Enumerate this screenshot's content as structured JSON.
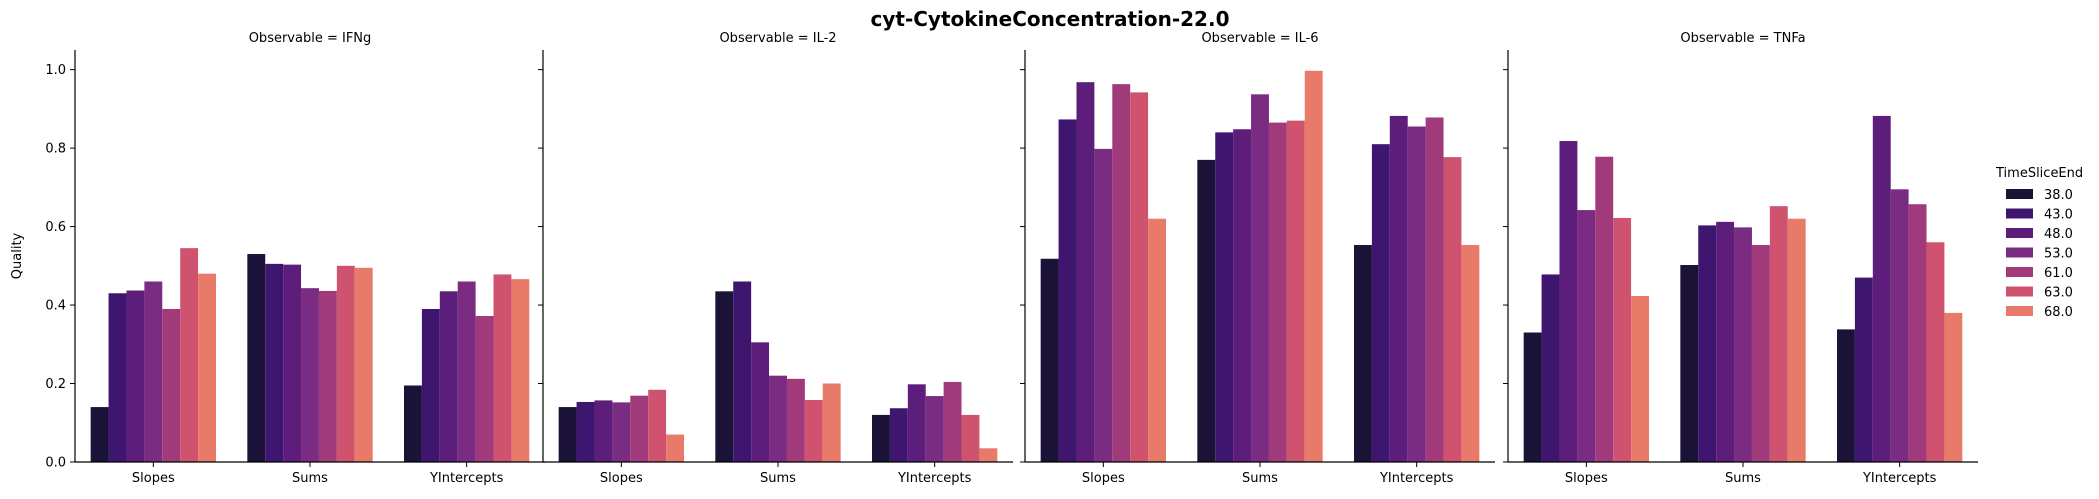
{
  "figure": {
    "title": "cyt-CytokineConcentration-22.0"
  },
  "legend": {
    "title": "TimeSliceEnd",
    "placement": "right"
  },
  "chart_data": {
    "type": "bar",
    "title": "cyt-CytokineConcentration-22.0",
    "ylabel": "Quality",
    "xlabel": "",
    "ylim": [
      0,
      1.05
    ],
    "yticks": [
      "0.0",
      "0.2",
      "0.4",
      "0.6",
      "0.8",
      "1.0"
    ],
    "categories": [
      "Slopes",
      "Sums",
      "YIntercepts"
    ],
    "series_names": [
      "38.0",
      "43.0",
      "48.0",
      "53.0",
      "61.0",
      "63.0",
      "68.0"
    ],
    "colors": [
      "#1b1237",
      "#3e1670",
      "#5c1e7a",
      "#7a2b82",
      "#a03a7b",
      "#cf536e",
      "#e87a6a"
    ],
    "grid": false,
    "panels": [
      {
        "title": "Observable = IFNg",
        "values": [
          [
            0.14,
            0.43,
            0.437,
            0.46,
            0.39,
            0.545,
            0.48
          ],
          [
            0.53,
            0.505,
            0.503,
            0.443,
            0.436,
            0.5,
            0.495
          ],
          [
            0.195,
            0.39,
            0.435,
            0.46,
            0.372,
            0.478,
            0.466
          ]
        ]
      },
      {
        "title": "Observable = IL-2",
        "values": [
          [
            0.14,
            0.153,
            0.157,
            0.152,
            0.169,
            0.184,
            0.07
          ],
          [
            0.435,
            0.46,
            0.305,
            0.22,
            0.212,
            0.158,
            0.2
          ],
          [
            0.12,
            0.137,
            0.198,
            0.168,
            0.204,
            0.12,
            0.035
          ]
        ]
      },
      {
        "title": "Observable = IL-6",
        "values": [
          [
            0.518,
            0.873,
            0.968,
            0.798,
            0.963,
            0.942,
            0.62
          ],
          [
            0.77,
            0.84,
            0.848,
            0.937,
            0.865,
            0.87,
            0.997
          ],
          [
            0.553,
            0.81,
            0.882,
            0.855,
            0.878,
            0.777,
            0.553
          ]
        ]
      },
      {
        "title": "Observable = TNFa",
        "values": [
          [
            0.33,
            0.478,
            0.818,
            0.642,
            0.778,
            0.622,
            0.423
          ],
          [
            0.502,
            0.603,
            0.612,
            0.598,
            0.553,
            0.652,
            0.62
          ],
          [
            0.338,
            0.47,
            0.882,
            0.695,
            0.657,
            0.56,
            0.38
          ]
        ]
      }
    ]
  }
}
